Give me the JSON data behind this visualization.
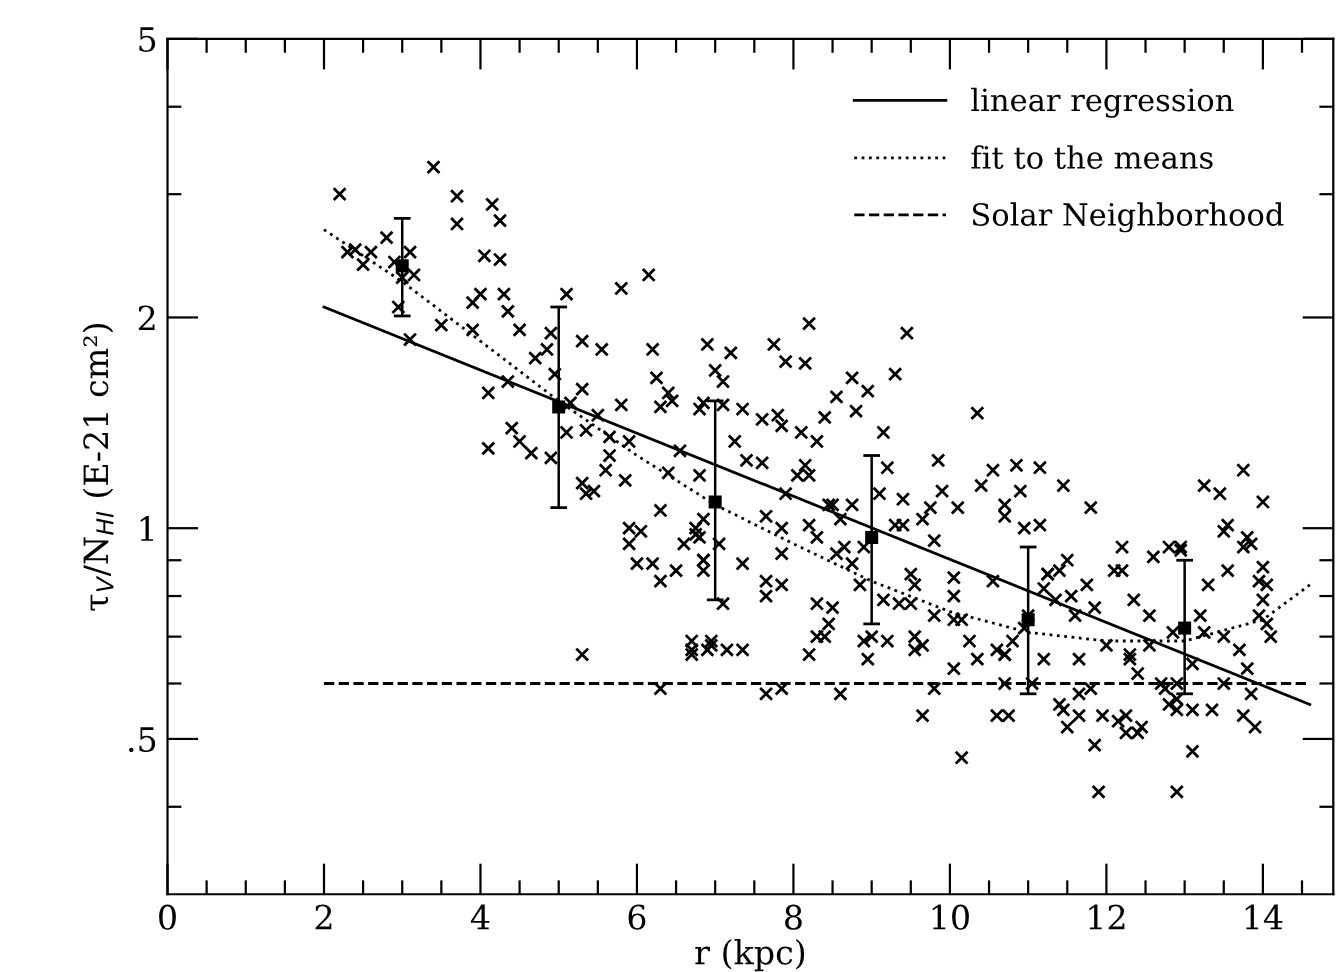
{
  "chart_data": {
    "type": "scatter",
    "xlabel": "r (kpc)",
    "ylabel": "τ$_{V}$/N$_{HI}$ (E-21 cm²)",
    "xlim": [
      0,
      14.9
    ],
    "xticks": [
      0,
      {
        "value": 0.5,
        "label": null
      },
      {
        "value": 1,
        "label": null
      },
      {
        "value": 1.5,
        "label": null
      },
      2,
      {
        "value": 2.5,
        "label": null
      },
      {
        "value": 3,
        "label": null
      },
      {
        "value": 3.5,
        "label": null
      },
      4,
      {
        "value": 4.5,
        "label": null
      },
      {
        "value": 5,
        "label": null
      },
      {
        "value": 5.5,
        "label": null
      },
      6,
      {
        "value": 6.5,
        "label": null
      },
      {
        "value": 7,
        "label": null
      },
      {
        "value": 7.5,
        "label": null
      },
      8,
      {
        "value": 8.5,
        "label": null
      },
      {
        "value": 9,
        "label": null
      },
      {
        "value": 9.5,
        "label": null
      },
      10,
      {
        "value": 10.5,
        "label": null
      },
      {
        "value": 11,
        "label": null
      },
      {
        "value": 11.5,
        "label": null
      },
      12,
      {
        "value": 12.5,
        "label": null
      },
      {
        "value": 13,
        "label": null
      },
      {
        "value": 13.5,
        "label": null
      },
      14,
      {
        "value": 14.5,
        "label": null
      }
    ],
    "ylim": [
      0.3,
      5
    ],
    "log": "y",
    "yticks": [
      {
        "value": 0.4,
        "label": null
      },
      {
        "value": 0.5,
        "label": ".5"
      },
      {
        "value": 0.6,
        "label": null
      },
      {
        "value": 0.7,
        "label": null
      },
      {
        "value": 0.8,
        "label": null
      },
      {
        "value": 0.9,
        "label": null
      },
      1,
      2,
      {
        "value": 3,
        "label": null
      },
      {
        "value": 4,
        "label": null
      },
      5
    ],
    "grid": false,
    "legend": "top right",
    "series": [
      {
        "marker": "cross",
        "color": "#000000",
        "x": [
          2.2,
          2.3,
          2.4,
          2.5,
          2.6,
          2.8,
          2.9,
          3.0,
          3.1,
          3.15,
          2.95,
          3.1,
          3.4,
          3.5,
          3.7,
          3.7,
          3.9,
          3.9,
          4.0,
          4.05,
          4.15,
          4.25,
          4.25,
          4.3,
          4.35,
          4.5,
          4.1,
          4.35,
          4.4,
          4.1,
          4.5,
          4.7,
          4.85,
          4.9,
          4.95,
          5.1,
          4.65,
          4.9,
          5.1,
          5.15,
          5.3,
          5.3,
          5.35,
          5.5,
          5.55,
          5.65,
          5.65,
          5.8,
          5.8,
          5.9,
          6.2,
          6.15,
          6.25,
          6.3,
          6.4,
          6.45,
          6.8,
          6.9,
          7.0,
          7.2,
          7.1,
          6.85,
          7.1,
          7.35,
          5.3,
          5.35,
          5.45,
          5.6,
          5.85,
          5.9,
          5.9,
          6.05,
          6.0,
          6.2,
          6.3,
          6.3,
          6.4,
          6.5,
          6.6,
          6.75,
          6.8,
          6.85,
          6.85,
          5.3,
          6.7,
          6.7,
          6.9,
          6.3,
          6.95,
          6.75,
          6.85,
          6.85,
          7.05,
          7.1,
          6.7,
          6.95,
          7.15,
          7.35,
          7.65,
          7.65,
          7.85,
          7.35,
          7.65,
          7.85,
          7.65,
          7.85,
          7.85,
          7.9,
          8.05,
          8.2,
          8.2,
          8.3,
          8.2,
          8.3,
          8.3,
          8.4,
          8.45,
          8.5,
          8.45,
          8.5,
          8.6,
          8.6,
          8.75,
          8.55,
          8.65,
          8.75,
          8.85,
          8.9,
          8.95,
          8.9,
          9.0,
          9.1,
          9.15,
          9.2,
          9.2,
          9.3,
          9.4,
          9.4,
          9.35,
          9.5,
          9.55,
          9.5,
          9.55,
          9.55,
          9.65,
          9.65,
          9.65,
          9.75,
          9.8,
          9.9,
          9.8,
          9.8,
          10.05,
          10.05,
          10.1,
          10.05,
          10.05,
          10.15,
          10.15,
          10.25,
          10.35,
          10.55,
          10.6,
          10.6,
          10.75,
          10.7,
          10.7,
          10.7,
          10.7,
          10.7,
          10.8,
          10.9,
          10.95,
          10.95,
          11.0,
          11.05,
          11.15,
          11.15,
          11.2,
          11.25,
          11.2,
          11.25,
          11.35,
          11.4,
          11.4,
          11.45,
          11.45,
          11.5,
          11.5,
          11.55,
          11.6,
          11.65,
          11.65,
          11.65,
          11.75,
          11.8,
          11.8,
          11.85,
          11.9,
          11.85,
          11.95,
          12.15,
          12.0,
          12.1,
          12.2,
          12.2,
          12.25,
          12.25,
          12.3,
          12.3,
          12.35,
          12.4,
          12.4,
          12.45,
          12.55,
          12.55,
          12.6,
          12.7,
          12.75,
          12.8,
          12.8,
          12.85,
          12.9,
          12.9,
          12.95,
          12.95,
          12.9,
          12.9,
          13.1,
          13.1,
          13.1,
          13.2,
          13.25,
          13.25,
          13.3,
          13.35,
          13.45,
          13.5,
          13.5,
          13.5,
          13.55,
          13.55,
          13.7,
          13.75,
          13.75,
          13.75,
          13.8,
          13.8,
          13.85,
          13.85,
          13.9,
          13.95,
          14.0,
          13.95,
          14.0,
          14.0,
          14.05,
          14.05,
          14.1,
          7.6,
          7.8,
          7.85,
          8.1,
          8.15,
          8.3,
          8.4,
          8.55,
          8.8,
          8.95,
          9.15,
          9.3,
          9.45,
          8.2,
          8.15,
          8.75,
          10.35,
          10.4,
          10.55,
          10.85,
          9.85,
          7.4,
          7.6,
          7.25,
          6.8,
          6.55,
          7.9,
          7.75
        ],
        "values": [
          3.0,
          2.48,
          2.5,
          2.38,
          2.48,
          2.6,
          2.4,
          2.28,
          2.48,
          2.3,
          2.07,
          1.86,
          3.28,
          1.95,
          2.98,
          2.72,
          2.1,
          1.92,
          2.16,
          2.45,
          2.9,
          2.75,
          2.42,
          2.16,
          2.04,
          1.92,
          1.56,
          1.62,
          1.39,
          1.3,
          1.33,
          1.75,
          1.8,
          1.9,
          1.66,
          2.16,
          1.28,
          1.26,
          1.37,
          1.51,
          1.85,
          1.58,
          1.38,
          1.45,
          1.8,
          1.35,
          1.27,
          2.2,
          1.5,
          1.33,
          1.8,
          2.3,
          1.64,
          1.49,
          1.56,
          1.52,
          1.48,
          1.83,
          1.68,
          1.78,
          1.62,
          1.51,
          1.5,
          1.48,
          1.16,
          1.12,
          1.13,
          1.21,
          1.17,
          1.0,
          0.95,
          0.99,
          0.89,
          0.89,
          1.06,
          0.84,
          1.2,
          0.87,
          0.95,
          1.0,
          0.97,
          0.9,
          1.03,
          0.66,
          0.66,
          0.69,
          0.67,
          0.59,
          0.69,
          0.98,
          0.9,
          0.87,
          0.95,
          0.78,
          0.67,
          0.68,
          0.67,
          0.67,
          0.84,
          0.8,
          0.83,
          0.89,
          0.58,
          0.59,
          1.04,
          1.0,
          0.92,
          1.12,
          1.19,
          1.19,
          1.01,
          0.97,
          0.66,
          0.78,
          0.7,
          0.7,
          0.73,
          0.77,
          1.08,
          1.08,
          1.03,
          0.58,
          1.08,
          0.92,
          0.94,
          0.89,
          0.83,
          0.94,
          0.65,
          0.69,
          0.7,
          1.12,
          0.79,
          1.22,
          0.69,
          1.01,
          1.01,
          1.1,
          0.78,
          0.86,
          0.83,
          0.78,
          0.7,
          0.67,
          0.68,
          0.54,
          1.03,
          1.07,
          0.96,
          1.13,
          0.59,
          0.75,
          0.85,
          0.8,
          1.07,
          0.74,
          0.63,
          0.74,
          0.47,
          0.69,
          0.65,
          0.84,
          0.67,
          0.54,
          0.54,
          0.66,
          0.66,
          0.6,
          1.08,
          1.04,
          0.69,
          1.13,
          0.72,
          1.0,
          0.75,
          0.6,
          1.22,
          1.01,
          0.82,
          0.86,
          0.65,
          0.86,
          0.79,
          0.87,
          0.56,
          0.55,
          1.15,
          0.9,
          0.52,
          0.8,
          0.75,
          0.58,
          0.54,
          0.65,
          0.83,
          1.07,
          0.59,
          0.49,
          0.42,
          0.77,
          0.54,
          0.53,
          0.68,
          0.87,
          0.94,
          0.87,
          0.54,
          0.51,
          0.66,
          0.65,
          0.79,
          0.62,
          0.51,
          0.52,
          0.75,
          0.68,
          0.91,
          0.6,
          0.59,
          0.56,
          0.94,
          0.71,
          0.57,
          0.42,
          0.93,
          0.94,
          0.55,
          0.6,
          0.55,
          0.48,
          0.64,
          0.75,
          0.71,
          1.15,
          0.83,
          0.55,
          1.12,
          0.7,
          0.6,
          0.99,
          1.01,
          0.87,
          0.67,
          0.94,
          0.54,
          1.21,
          0.97,
          0.63,
          0.95,
          0.58,
          0.52,
          0.84,
          0.79,
          0.75,
          1.09,
          0.88,
          0.83,
          0.73,
          0.7,
          1.43,
          1.45,
          1.4,
          1.37,
          1.23,
          1.33,
          1.44,
          1.54,
          1.47,
          1.57,
          1.37,
          1.66,
          1.9,
          1.96,
          1.72,
          1.64,
          1.46,
          1.15,
          1.21,
          1.23,
          1.25,
          1.25,
          1.24,
          1.33,
          1.19,
          1.29,
          1.73,
          1.83
        ]
      },
      {
        "marker": "square",
        "color": "#000000",
        "x": [
          3,
          5,
          7,
          9,
          11,
          13
        ],
        "values": [
          2.37,
          1.49,
          1.09,
          0.97,
          0.74,
          0.72
        ],
        "errors": [
          [
            2.01,
            2.77
          ],
          [
            1.07,
            2.07
          ],
          [
            0.79,
            1.52
          ],
          [
            0.73,
            1.27
          ],
          [
            0.58,
            0.94
          ],
          [
            0.58,
            0.9
          ]
        ]
      },
      {
        "type": "line",
        "name": "linear regression",
        "line_style": "solid",
        "color": "#000000",
        "x": [
          2,
          14.6
        ],
        "values": [
          2.07,
          0.56
        ]
      },
      {
        "type": "line",
        "name": "fit to the means",
        "line_style": "dotted",
        "color": "#000000",
        "x": [
          2,
          3,
          4,
          5,
          6,
          7,
          8,
          9,
          10,
          11,
          12,
          13,
          14,
          14.6
        ],
        "values": [
          2.67,
          2.25,
          1.85,
          1.52,
          1.27,
          1.08,
          0.95,
          0.84,
          0.76,
          0.71,
          0.69,
          0.69,
          0.74,
          0.83
        ]
      },
      {
        "type": "line",
        "name": "Solar Neighborhood",
        "line_style": "dashed",
        "color": "#000000",
        "x": [
          2,
          14.6
        ],
        "values": [
          0.6,
          0.6
        ]
      }
    ]
  }
}
